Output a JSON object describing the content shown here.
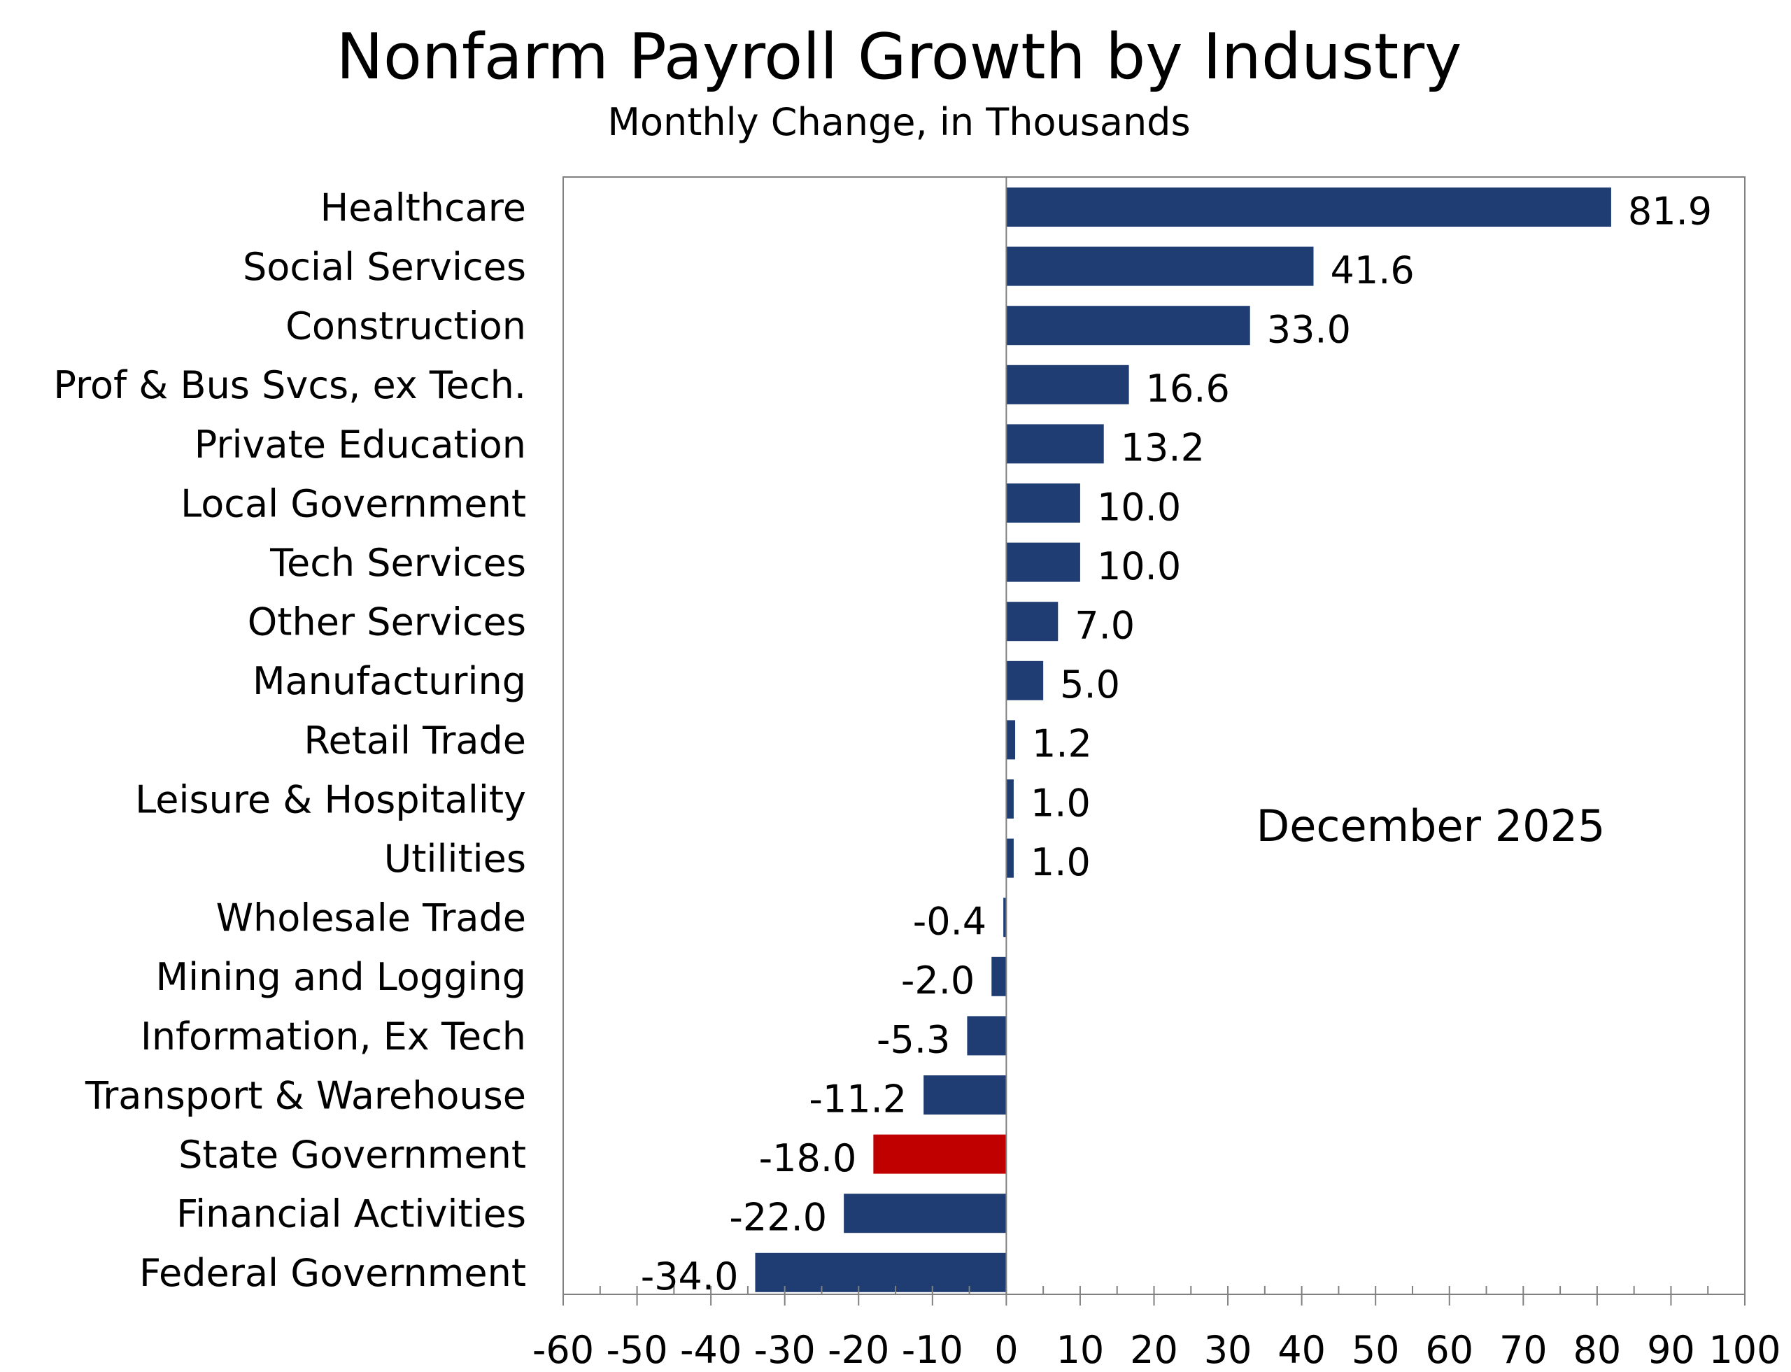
{
  "chart_data": {
    "type": "bar",
    "orientation": "horizontal",
    "title": "Nonfarm Payroll Growth by Industry",
    "subtitle": "Monthly Change, in Thousands",
    "annotation": "December 2025",
    "categories": [
      "Healthcare",
      "Social Services",
      "Construction",
      "Prof & Bus Svcs, ex Tech.",
      "Private Education",
      "Local Government",
      "Tech Services",
      "Other Services",
      "Manufacturing",
      "Retail Trade",
      "Leisure & Hospitality",
      "Utilities",
      "Wholesale Trade",
      "Mining and Logging",
      "Information, Ex Tech",
      "Transport & Warehouse",
      "State Government",
      "Financial Activities",
      "Federal Government"
    ],
    "values": [
      81.9,
      41.6,
      33.0,
      16.6,
      13.2,
      10.0,
      10.0,
      7.0,
      5.0,
      1.2,
      1.0,
      1.0,
      -0.4,
      -2.0,
      -5.3,
      -11.2,
      -18.0,
      -22.0,
      -34.0
    ],
    "value_labels": [
      "81.9",
      "41.6",
      "33.0",
      "16.6",
      "13.2",
      "10.0",
      "10.0",
      "7.0",
      "5.0",
      "1.2",
      "1.0",
      "1.0",
      "-0.4",
      "-2.0",
      "-5.3",
      "-11.2",
      "-18.0",
      "-22.0",
      "-34.0"
    ],
    "highlight_category": "State Government",
    "xlim": [
      -60,
      100
    ],
    "xticks": [
      -60,
      -50,
      -40,
      -30,
      -20,
      -10,
      0,
      10,
      20,
      30,
      40,
      50,
      60,
      70,
      80,
      90,
      100
    ],
    "xtick_labels": [
      "-60",
      "-50",
      "-40",
      "-30",
      "-20",
      "-10",
      "0",
      "10",
      "20",
      "30",
      "40",
      "50",
      "60",
      "70",
      "80",
      "90",
      "100"
    ],
    "minor_tick_step": 5,
    "grid": false,
    "colors": {
      "bar": "#1f3d73",
      "highlight": "#c00000",
      "axis": "#808080",
      "text": "#000000"
    }
  }
}
